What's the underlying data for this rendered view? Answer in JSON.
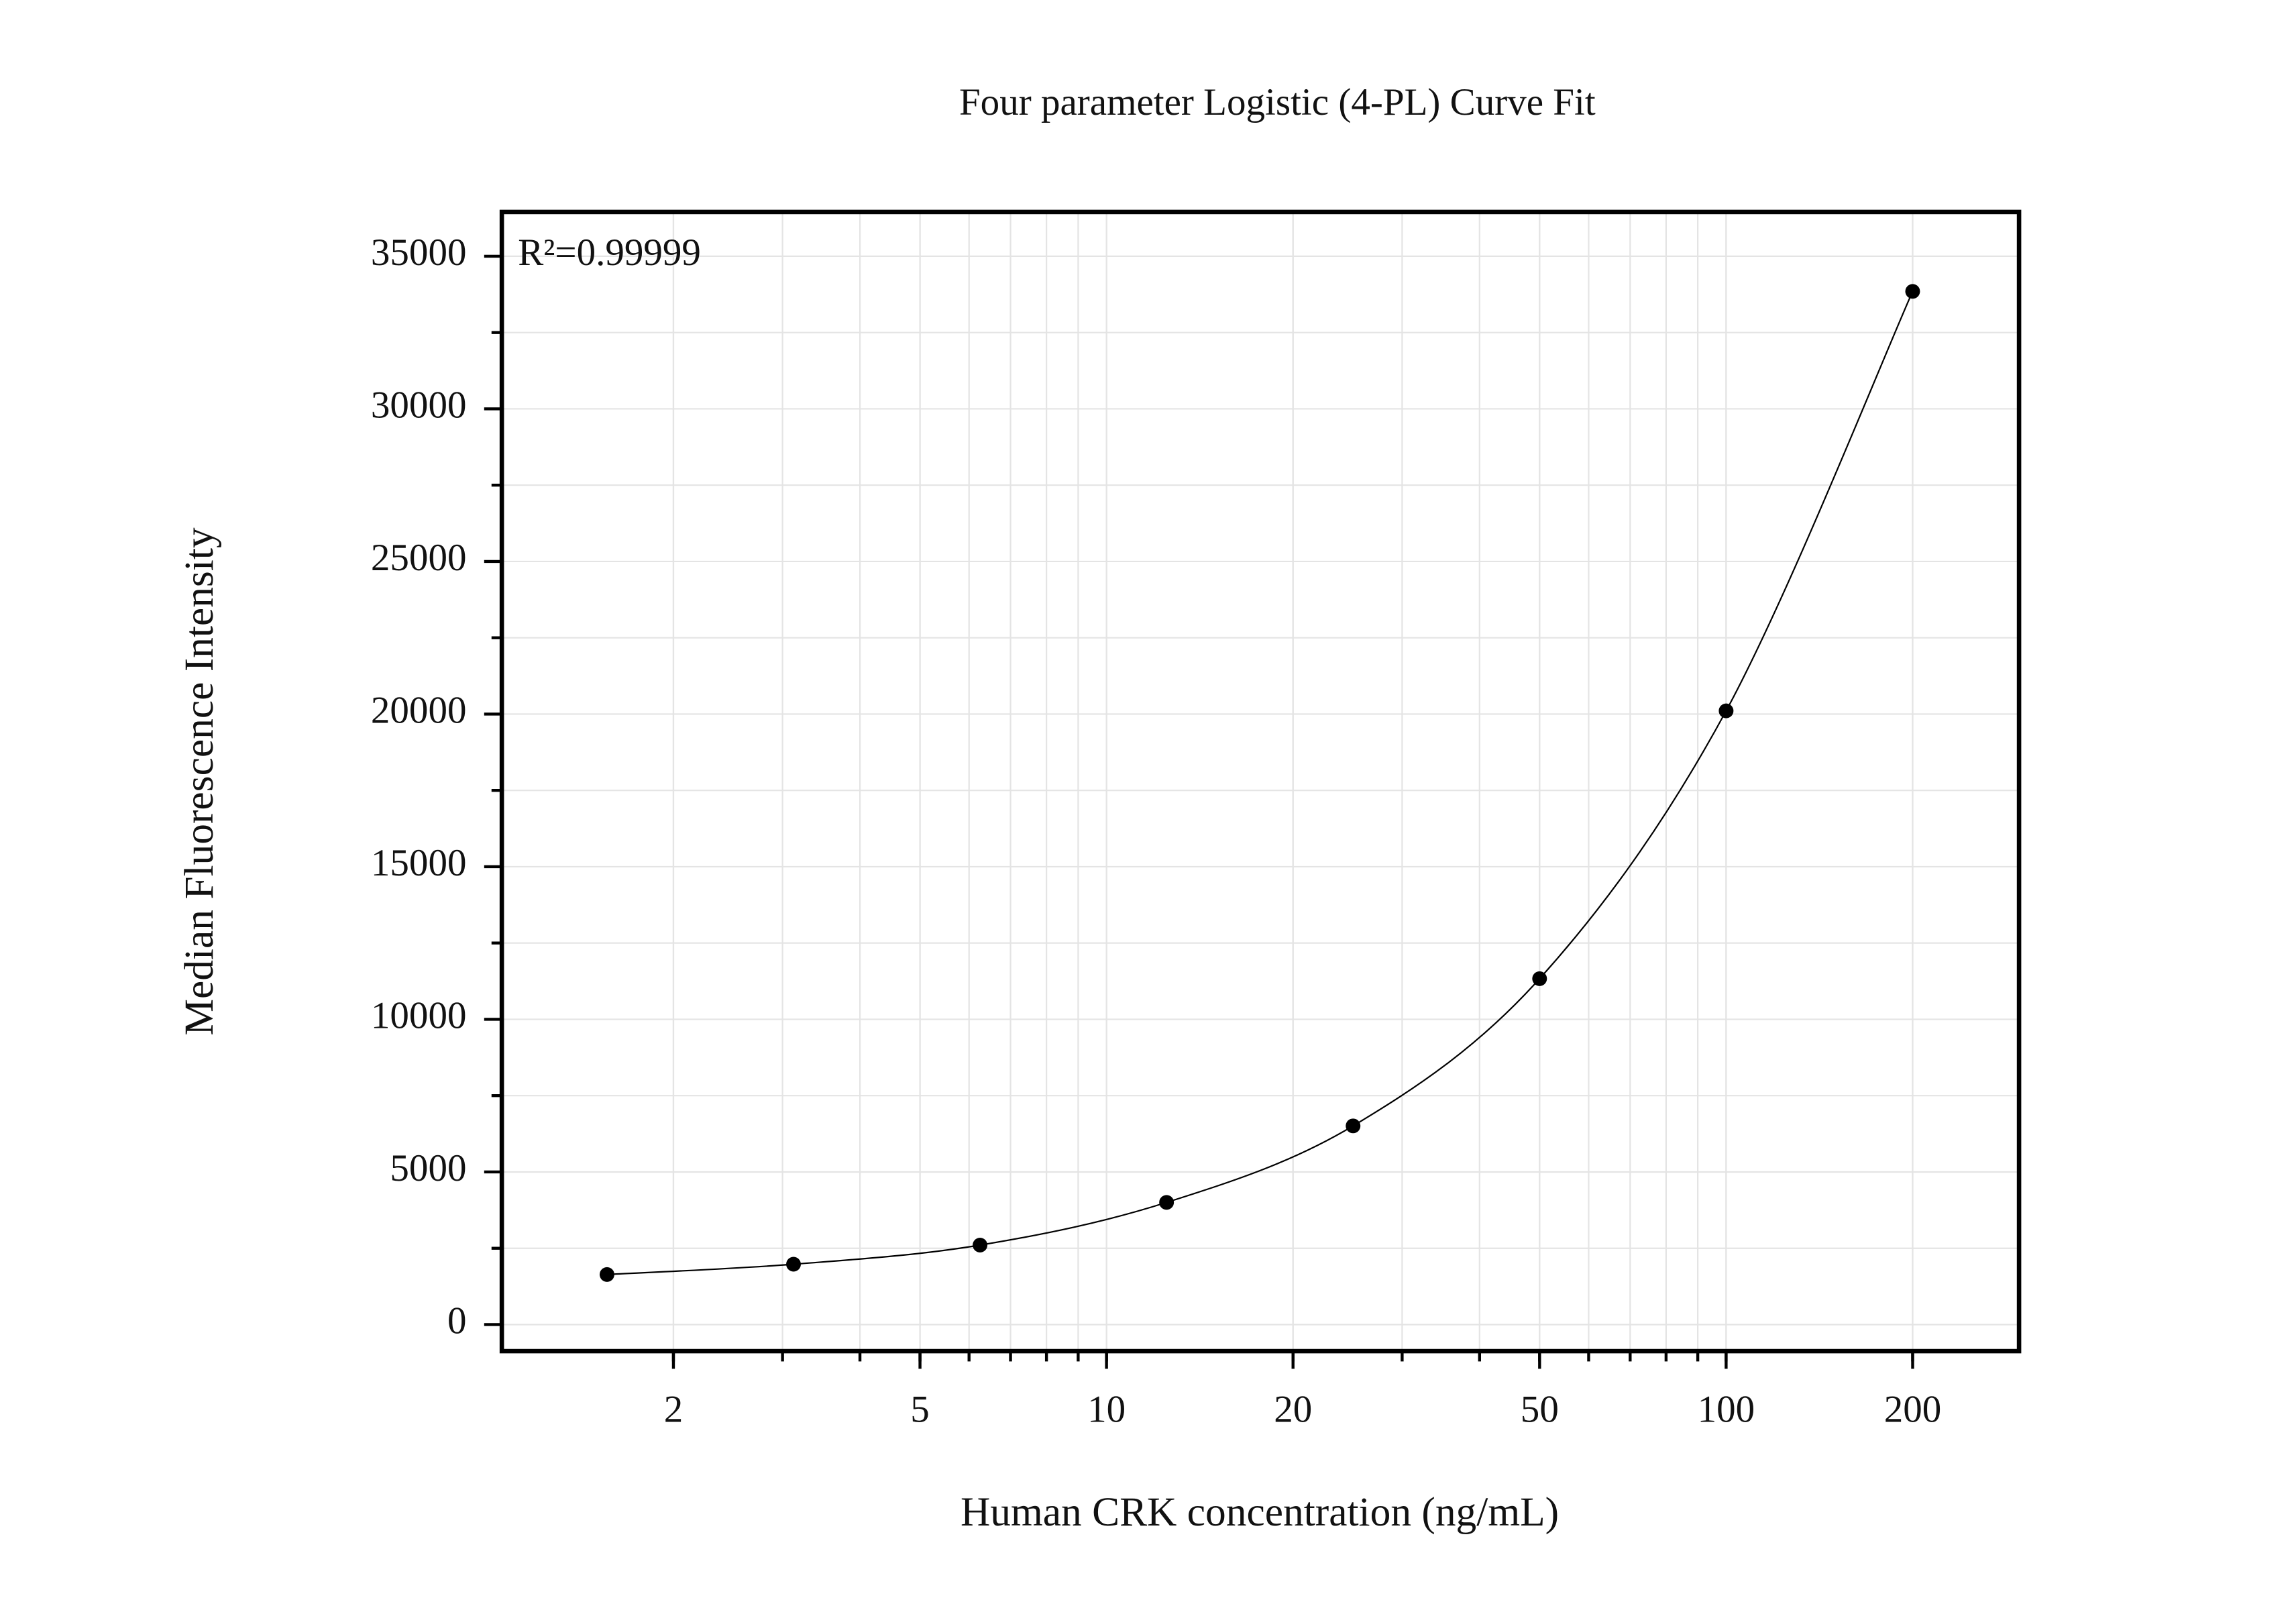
{
  "chart_data": {
    "type": "scatter",
    "title": "Four parameter Logistic (4-PL) Curve Fit",
    "x_label": "Human CRK concentration (ng/mL)",
    "y_label": "Median Fluorescence Intensity",
    "annotation": "R²=0.99999",
    "x_scale": "log",
    "grid": true,
    "fit_curve": true,
    "x": [
      1.5625,
      3.125,
      6.25,
      12.5,
      25,
      50,
      100,
      200
    ],
    "series": [
      {
        "color": "#000000",
        "values": [
          1640,
          1977,
          2604,
          4002,
          6509,
          11332,
          20106,
          33848
        ]
      }
    ],
    "xlim": [
      1.057,
      297
    ],
    "xticks": [
      2,
      5,
      10,
      20,
      50,
      100,
      200
    ],
    "ylim": [
      -870,
      36450
    ],
    "yticks": [
      0,
      5000,
      10000,
      15000,
      20000,
      25000,
      30000,
      35000
    ]
  }
}
